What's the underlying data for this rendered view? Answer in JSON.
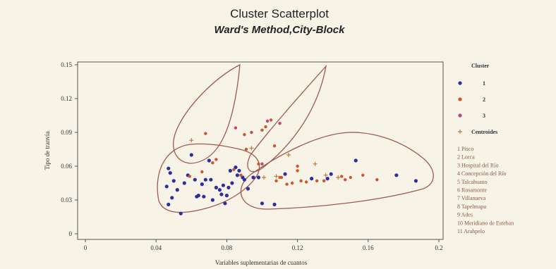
{
  "chart_data": {
    "type": "scatter",
    "title": "Cluster Scatterplot",
    "subtitle": "Ward's Method,City-Block",
    "xlabel": "Variables suplementarias de cuantos",
    "ylabel": "Tipo de tranvía",
    "x_ticks": [
      "0",
      "0.04",
      "0.08",
      "0.12",
      "0.16",
      "0.2"
    ],
    "y_ticks": [
      "0",
      "0.03",
      "0.06",
      "0.09",
      "0.12",
      "0.15"
    ],
    "xlim": [
      0,
      0.2
    ],
    "ylim": [
      0,
      0.15
    ],
    "grid": false,
    "legend_position": "right",
    "legend_title": "Cluster",
    "colors": {
      "cluster1": "#2e2ea0",
      "cluster2": "#d0562a",
      "cluster3": "#b84a7a",
      "centroids": "#c07a3a",
      "ellipse": "#a05a50",
      "frame": "#555555"
    },
    "series": [
      {
        "name": "1",
        "points": [
          [
            0.047,
            0.058
          ],
          [
            0.048,
            0.054
          ],
          [
            0.046,
            0.042
          ],
          [
            0.049,
            0.032
          ],
          [
            0.047,
            0.026
          ],
          [
            0.05,
            0.047
          ],
          [
            0.052,
            0.039
          ],
          [
            0.054,
            0.018
          ],
          [
            0.056,
            0.045
          ],
          [
            0.058,
            0.052
          ],
          [
            0.06,
            0.07
          ],
          [
            0.062,
            0.048
          ],
          [
            0.063,
            0.033
          ],
          [
            0.064,
            0.034
          ],
          [
            0.066,
            0.044
          ],
          [
            0.067,
            0.033
          ],
          [
            0.068,
            0.048
          ],
          [
            0.07,
            0.065
          ],
          [
            0.071,
            0.048
          ],
          [
            0.072,
            0.03
          ],
          [
            0.074,
            0.041
          ],
          [
            0.076,
            0.039
          ],
          [
            0.077,
            0.035
          ],
          [
            0.078,
            0.043
          ],
          [
            0.079,
            0.027
          ],
          [
            0.08,
            0.034
          ],
          [
            0.081,
            0.041
          ],
          [
            0.082,
            0.056
          ],
          [
            0.083,
            0.045
          ],
          [
            0.085,
            0.059
          ],
          [
            0.086,
            0.052
          ],
          [
            0.087,
            0.056
          ],
          [
            0.089,
            0.05
          ],
          [
            0.09,
            0.048
          ],
          [
            0.092,
            0.04
          ],
          [
            0.095,
            0.05
          ],
          [
            0.098,
            0.05
          ],
          [
            0.1,
            0.027
          ],
          [
            0.107,
            0.026
          ],
          [
            0.113,
            0.053
          ],
          [
            0.128,
            0.049
          ],
          [
            0.137,
            0.049
          ],
          [
            0.139,
            0.053
          ],
          [
            0.153,
            0.065
          ],
          [
            0.176,
            0.052
          ],
          [
            0.187,
            0.047
          ]
        ]
      },
      {
        "name": "2",
        "points": [
          [
            0.059,
            0.051
          ],
          [
            0.066,
            0.055
          ],
          [
            0.068,
            0.089
          ],
          [
            0.072,
            0.063
          ],
          [
            0.074,
            0.066
          ],
          [
            0.084,
            0.057
          ],
          [
            0.088,
            0.052
          ],
          [
            0.09,
            0.088
          ],
          [
            0.091,
            0.075
          ],
          [
            0.098,
            0.062
          ],
          [
            0.1,
            0.092
          ],
          [
            0.102,
            0.095
          ],
          [
            0.105,
            0.101
          ],
          [
            0.107,
            0.078
          ],
          [
            0.108,
            0.047
          ],
          [
            0.11,
            0.05
          ],
          [
            0.111,
            0.05
          ],
          [
            0.114,
            0.044
          ],
          [
            0.117,
            0.045
          ],
          [
            0.12,
            0.056
          ],
          [
            0.12,
            0.06
          ],
          [
            0.122,
            0.047
          ],
          [
            0.125,
            0.046
          ],
          [
            0.131,
            0.047
          ],
          [
            0.135,
            0.047
          ],
          [
            0.145,
            0.051
          ],
          [
            0.147,
            0.048
          ],
          [
            0.15,
            0.05
          ],
          [
            0.157,
            0.052
          ],
          [
            0.165,
            0.048
          ]
        ]
      },
      {
        "name": "3",
        "points": [
          [
            0.085,
            0.094
          ],
          [
            0.094,
            0.09
          ],
          [
            0.1,
            0.062
          ],
          [
            0.103,
            0.1
          ],
          [
            0.11,
            0.098
          ]
        ]
      },
      {
        "name": "Centroides",
        "points": [
          [
            0.06,
            0.083
          ],
          [
            0.094,
            0.076
          ],
          [
            0.101,
            0.05
          ],
          [
            0.108,
            0.051
          ],
          [
            0.115,
            0.07
          ],
          [
            0.13,
            0.062
          ],
          [
            0.136,
            0.052
          ],
          [
            0.143,
            0.05
          ]
        ]
      }
    ],
    "legend_items": [
      "1 Pisco",
      "2 Lorca",
      "3 Hospital del Río",
      "4 Concepción del Río",
      "5 Talcahuano",
      "6 Rosamonte",
      "7 Villanueva",
      "8 Tapelmapu",
      "9 Ades",
      "10 Meridiano de Esteban",
      "11 Arahpelo"
    ]
  }
}
